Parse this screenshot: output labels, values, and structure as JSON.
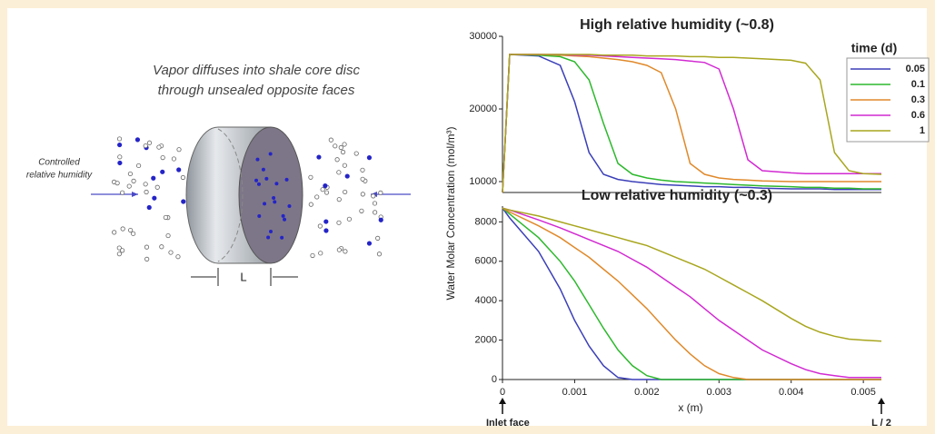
{
  "diagram": {
    "caption": [
      "Vapor diffuses into shale core disc",
      "through unsealed opposite faces"
    ],
    "side_label": [
      "Controlled",
      "relative humidity"
    ],
    "length_label": "L"
  },
  "chart_data": [
    {
      "type": "line",
      "title": "High relative humidity (~0.8)",
      "legend_title": "time (d)",
      "legend": "top-right",
      "x": [
        0,
        0.0001,
        0.0005,
        0.0008,
        0.001,
        0.0012,
        0.0014,
        0.0016,
        0.0018,
        0.002,
        0.0022,
        0.0024,
        0.0026,
        0.0028,
        0.003,
        0.0032,
        0.0034,
        0.0036,
        0.004,
        0.0042,
        0.0044,
        0.0046,
        0.0048,
        0.005,
        0.00525
      ],
      "xlim": [
        0,
        0.00525
      ],
      "ylim": [
        8500,
        30000
      ],
      "yticks": [
        10000,
        20000,
        30000
      ],
      "series": [
        {
          "name": "0.05",
          "color": "#3b3fb8",
          "values": [
            8500,
            27500,
            27300,
            26000,
            21000,
            14000,
            11000,
            10300,
            10000,
            9800,
            9600,
            9500,
            9400,
            9300,
            9300,
            9200,
            9200,
            9100,
            9000,
            9000,
            9000,
            8900,
            8900,
            8900,
            8900
          ]
        },
        {
          "name": "0.1",
          "color": "#2db82d",
          "values": [
            8500,
            27500,
            27400,
            27200,
            26500,
            24000,
            18000,
            12500,
            11000,
            10500,
            10200,
            10000,
            9900,
            9800,
            9700,
            9600,
            9500,
            9400,
            9300,
            9200,
            9200,
            9100,
            9100,
            9000,
            9000
          ]
        },
        {
          "name": "0.3",
          "color": "#e0892a",
          "values": [
            8500,
            27500,
            27500,
            27400,
            27300,
            27200,
            27000,
            26800,
            26500,
            26000,
            25000,
            20000,
            12500,
            11000,
            10500,
            10300,
            10200,
            10100,
            10000,
            10000,
            10000,
            10000,
            10000,
            10000,
            10000
          ]
        },
        {
          "name": "0.6",
          "color": "#d22ad2",
          "values": [
            8500,
            27500,
            27500,
            27500,
            27400,
            27400,
            27300,
            27200,
            27100,
            27000,
            26900,
            26800,
            26600,
            26400,
            25500,
            20000,
            13000,
            11500,
            11200,
            11100,
            11100,
            11100,
            11100,
            11100,
            11100
          ]
        },
        {
          "name": "1",
          "color": "#a8a61e",
          "values": [
            8500,
            27500,
            27500,
            27500,
            27500,
            27500,
            27400,
            27400,
            27400,
            27300,
            27300,
            27300,
            27200,
            27200,
            27100,
            27100,
            27000,
            26900,
            26700,
            26300,
            24000,
            14000,
            11500,
            11100,
            11000
          ]
        }
      ]
    },
    {
      "type": "line",
      "title": "Low relative humidity (~0.3)",
      "xlabel": "x (m)",
      "ylabel": "Water Molar Concentration (mol/m³)",
      "annotations": [
        "Inlet face",
        "L / 2"
      ],
      "x": [
        0,
        0.0001,
        0.0005,
        0.0008,
        0.001,
        0.0012,
        0.0014,
        0.0016,
        0.0018,
        0.002,
        0.0022,
        0.0024,
        0.0026,
        0.0028,
        0.003,
        0.0032,
        0.0034,
        0.0036,
        0.004,
        0.0042,
        0.0044,
        0.0046,
        0.0048,
        0.005,
        0.00525
      ],
      "xlim": [
        0,
        0.00525
      ],
      "ylim": [
        0,
        8800
      ],
      "yticks": [
        0,
        2000,
        4000,
        6000,
        8000
      ],
      "xticks": [
        0,
        0.001,
        0.002,
        0.003,
        0.004,
        0.005
      ],
      "series": [
        {
          "name": "0.05",
          "color": "#3b3fb8",
          "values": [
            8700,
            8200,
            6500,
            4600,
            3000,
            1700,
            700,
            100,
            0,
            0,
            0,
            0,
            0,
            0,
            0,
            0,
            0,
            0,
            0,
            0,
            0,
            0,
            0,
            0,
            0
          ]
        },
        {
          "name": "0.1",
          "color": "#2db82d",
          "values": [
            8700,
            8400,
            7200,
            6000,
            5000,
            3800,
            2600,
            1500,
            700,
            200,
            0,
            0,
            0,
            0,
            0,
            0,
            0,
            0,
            0,
            0,
            0,
            0,
            0,
            0,
            0
          ]
        },
        {
          "name": "0.3",
          "color": "#e0892a",
          "values": [
            8700,
            8500,
            7800,
            7200,
            6700,
            6200,
            5600,
            5000,
            4300,
            3600,
            2800,
            2000,
            1300,
            700,
            300,
            100,
            0,
            0,
            0,
            0,
            0,
            0,
            0,
            0,
            0
          ]
        },
        {
          "name": "0.6",
          "color": "#d22ad2",
          "values": [
            8700,
            8600,
            8100,
            7700,
            7400,
            7100,
            6800,
            6500,
            6100,
            5700,
            5200,
            4700,
            4200,
            3600,
            3000,
            2500,
            2000,
            1500,
            800,
            500,
            300,
            200,
            100,
            100,
            100
          ]
        },
        {
          "name": "1",
          "color": "#a8a61e",
          "values": [
            8700,
            8600,
            8300,
            8000,
            7800,
            7600,
            7400,
            7200,
            7000,
            6800,
            6500,
            6200,
            5900,
            5600,
            5200,
            4800,
            4400,
            4000,
            3100,
            2700,
            2400,
            2200,
            2050,
            2000,
            1950
          ]
        }
      ]
    }
  ]
}
